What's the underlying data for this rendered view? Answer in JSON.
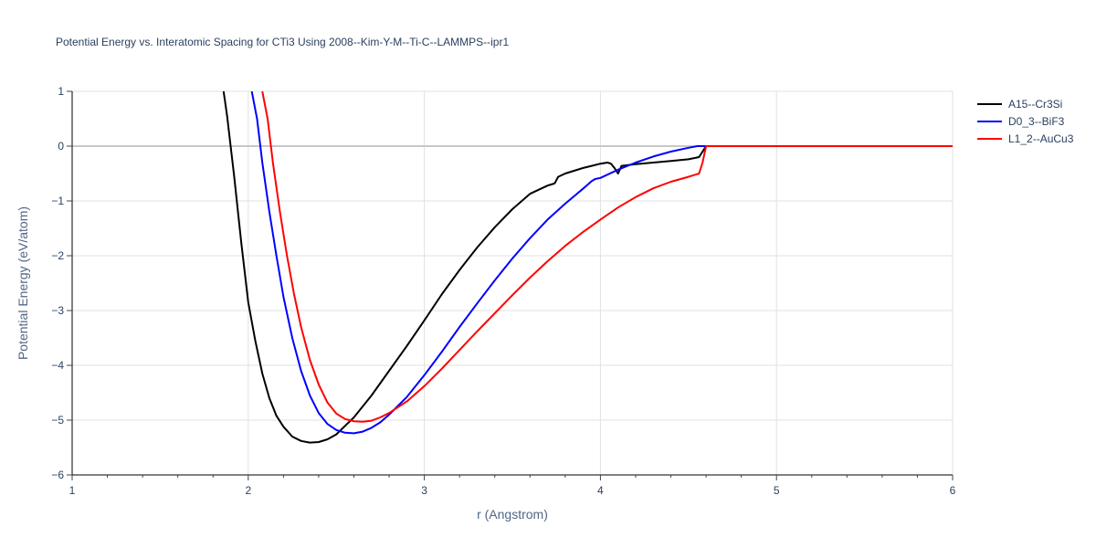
{
  "chart_data": {
    "type": "line",
    "title": "Potential Energy vs. Interatomic Spacing for CTi3 Using 2008--Kim-Y-M--Ti-C--LAMMPS--ipr1",
    "xlabel": "r (Angstrom)",
    "ylabel": "Potential Energy (eV/atom)",
    "xlim": [
      1,
      6
    ],
    "ylim": [
      -6,
      1
    ],
    "xticks": [
      1,
      2,
      3,
      4,
      5,
      6
    ],
    "yticks": [
      1,
      0,
      -1,
      -2,
      -3,
      -4,
      -5,
      -6
    ],
    "xtick_labels": [
      "1",
      "2",
      "3",
      "4",
      "5",
      "6"
    ],
    "ytick_labels": [
      "1",
      "0",
      "−1",
      "−2",
      "−3",
      "−4",
      "−5",
      "−6"
    ],
    "grid": true,
    "legend_position": "top-right",
    "series": [
      {
        "name": "A15--Cr3Si",
        "color": "#000000",
        "x": [
          1.86,
          1.88,
          1.92,
          1.96,
          2.0,
          2.04,
          2.08,
          2.12,
          2.16,
          2.2,
          2.25,
          2.3,
          2.35,
          2.4,
          2.45,
          2.5,
          2.6,
          2.7,
          2.8,
          2.9,
          3.0,
          3.1,
          3.2,
          3.3,
          3.4,
          3.5,
          3.6,
          3.7,
          3.72,
          3.74,
          3.76,
          3.8,
          3.85,
          3.9,
          3.95,
          4.0,
          4.04,
          4.06,
          4.08,
          4.1,
          4.12,
          4.2,
          4.3,
          4.4,
          4.5,
          4.56,
          4.58,
          4.6,
          4.7,
          4.8,
          5.0,
          5.5,
          6.0
        ],
        "y": [
          1.0,
          0.55,
          -0.55,
          -1.75,
          -2.85,
          -3.55,
          -4.15,
          -4.6,
          -4.92,
          -5.12,
          -5.3,
          -5.38,
          -5.41,
          -5.4,
          -5.35,
          -5.26,
          -4.95,
          -4.55,
          -4.1,
          -3.65,
          -3.18,
          -2.7,
          -2.26,
          -1.85,
          -1.48,
          -1.15,
          -0.87,
          -0.72,
          -0.7,
          -0.68,
          -0.56,
          -0.5,
          -0.45,
          -0.4,
          -0.36,
          -0.32,
          -0.3,
          -0.32,
          -0.4,
          -0.5,
          -0.36,
          -0.33,
          -0.3,
          -0.27,
          -0.24,
          -0.2,
          -0.1,
          0.0,
          0.0,
          0.0,
          0.0,
          0.0,
          0.0
        ]
      },
      {
        "name": "D0_3--BiF3",
        "color": "#0000ff",
        "x": [
          2.02,
          2.05,
          2.08,
          2.12,
          2.16,
          2.2,
          2.25,
          2.3,
          2.35,
          2.4,
          2.45,
          2.5,
          2.55,
          2.6,
          2.65,
          2.7,
          2.75,
          2.8,
          2.9,
          3.0,
          3.1,
          3.2,
          3.3,
          3.4,
          3.5,
          3.6,
          3.7,
          3.8,
          3.9,
          3.95,
          3.97,
          4.0,
          4.1,
          4.2,
          4.3,
          4.4,
          4.5,
          4.55,
          4.58,
          4.6,
          4.7,
          5.0,
          5.5,
          6.0
        ],
        "y": [
          1.0,
          0.5,
          -0.3,
          -1.2,
          -2.0,
          -2.75,
          -3.5,
          -4.1,
          -4.55,
          -4.87,
          -5.07,
          -5.18,
          -5.23,
          -5.24,
          -5.21,
          -5.14,
          -5.04,
          -4.9,
          -4.58,
          -4.18,
          -3.75,
          -3.3,
          -2.87,
          -2.45,
          -2.05,
          -1.68,
          -1.34,
          -1.05,
          -0.78,
          -0.64,
          -0.6,
          -0.58,
          -0.43,
          -0.3,
          -0.19,
          -0.1,
          -0.03,
          0.0,
          0.0,
          0.0,
          0.0,
          0.0,
          0.0,
          0.0
        ]
      },
      {
        "name": "L1_2--AuCu3",
        "color": "#ff0000",
        "x": [
          2.08,
          2.11,
          2.14,
          2.18,
          2.22,
          2.26,
          2.3,
          2.35,
          2.4,
          2.45,
          2.5,
          2.55,
          2.6,
          2.65,
          2.7,
          2.75,
          2.8,
          2.9,
          3.0,
          3.1,
          3.2,
          3.3,
          3.4,
          3.5,
          3.6,
          3.7,
          3.8,
          3.9,
          4.0,
          4.1,
          4.2,
          4.3,
          4.4,
          4.5,
          4.56,
          4.58,
          4.6,
          4.7,
          5.0,
          5.5,
          6.0
        ],
        "y": [
          1.0,
          0.5,
          -0.3,
          -1.2,
          -2.0,
          -2.7,
          -3.3,
          -3.9,
          -4.35,
          -4.68,
          -4.88,
          -4.98,
          -5.02,
          -5.03,
          -5.01,
          -4.95,
          -4.87,
          -4.66,
          -4.38,
          -4.06,
          -3.72,
          -3.38,
          -3.05,
          -2.72,
          -2.4,
          -2.1,
          -1.82,
          -1.57,
          -1.34,
          -1.12,
          -0.93,
          -0.77,
          -0.65,
          -0.56,
          -0.5,
          -0.3,
          0.0,
          0.0,
          0.0,
          0.0,
          0.0
        ]
      }
    ]
  }
}
